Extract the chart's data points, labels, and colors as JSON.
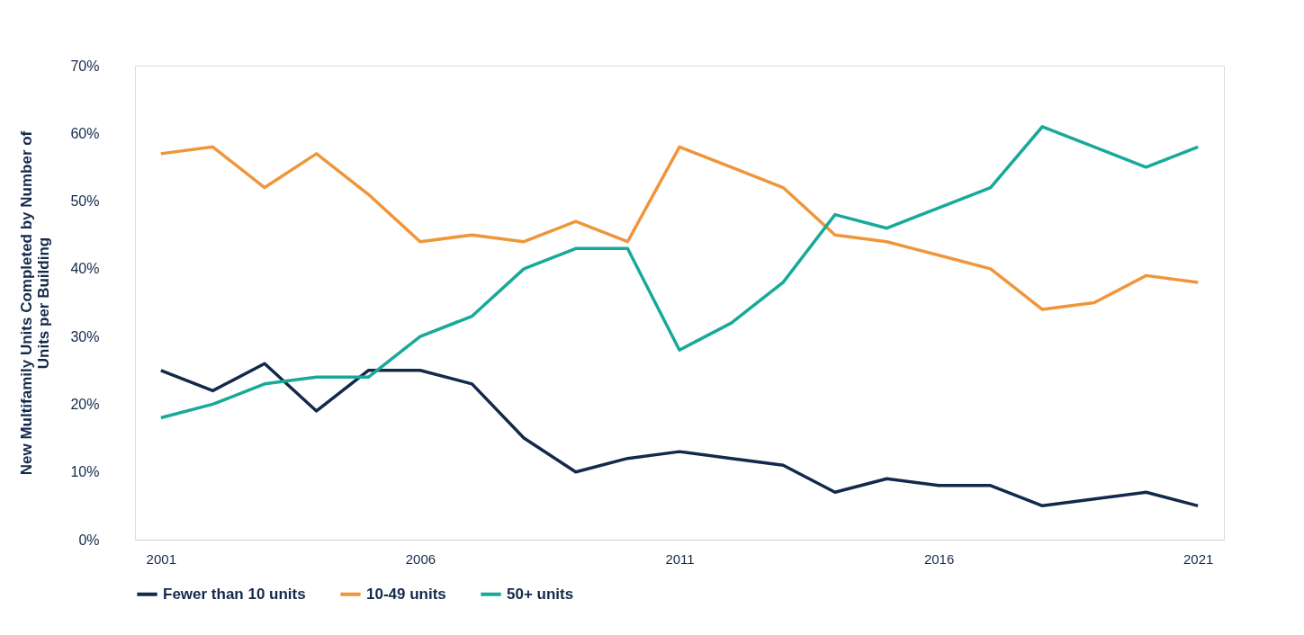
{
  "chart_data": {
    "type": "line",
    "ylabel": "New Multifamily Units Completed by Number of Units per Building",
    "x": [
      2001,
      2002,
      2003,
      2004,
      2005,
      2006,
      2007,
      2008,
      2009,
      2010,
      2011,
      2012,
      2013,
      2014,
      2015,
      2016,
      2017,
      2018,
      2019,
      2020,
      2021
    ],
    "series": [
      {
        "name": "Fewer than 10 units",
        "color": "#13294b",
        "values": [
          25,
          22,
          26,
          19,
          25,
          25,
          23,
          15,
          10,
          12,
          13,
          12,
          11,
          7,
          9,
          8,
          8,
          5,
          6,
          7,
          5
        ]
      },
      {
        "name": "10-49 units",
        "color": "#f0953a",
        "values": [
          57,
          58,
          52,
          57,
          51,
          44,
          45,
          44,
          47,
          44,
          58,
          55,
          52,
          45,
          44,
          42,
          40,
          34,
          35,
          39,
          38
        ]
      },
      {
        "name": "50+ units",
        "color": "#17a99a",
        "values": [
          18,
          20,
          23,
          24,
          24,
          30,
          33,
          40,
          43,
          43,
          28,
          32,
          38,
          48,
          46,
          49,
          52,
          61,
          58,
          55,
          58
        ]
      }
    ],
    "xlim": [
      2000.5,
      2021.5
    ],
    "xticks": [
      2001,
      2006,
      2011,
      2016,
      2021
    ],
    "ylim": [
      0,
      70
    ],
    "yticks": [
      {
        "value": 0,
        "label": "0%"
      },
      {
        "value": 10,
        "label": "10%"
      },
      {
        "value": 20,
        "label": "20%"
      },
      {
        "value": 30,
        "label": "30%"
      },
      {
        "value": 40,
        "label": "40%"
      },
      {
        "value": 50,
        "label": "50%"
      },
      {
        "value": 60,
        "label": "60%"
      },
      {
        "value": 70,
        "label": "70%"
      }
    ],
    "grid": false,
    "legend": "bottom",
    "marker": "none",
    "line_style": "solid"
  }
}
